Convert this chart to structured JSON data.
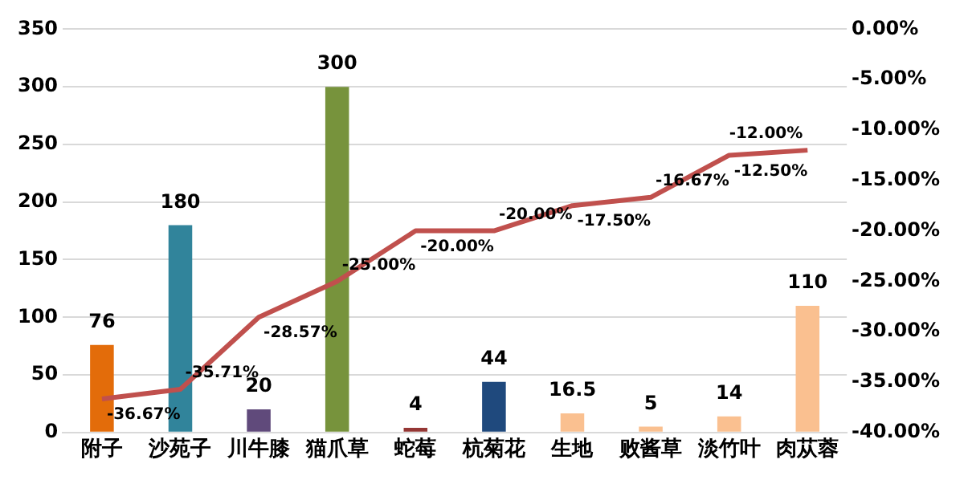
{
  "chart_data": {
    "type": "bar",
    "categories": [
      "附子",
      "沙苑子",
      "川牛膝",
      "猫爪草",
      "蛇莓",
      "杭菊花",
      "生地",
      "败酱草",
      "淡竹叶",
      "肉苁蓉"
    ],
    "series": [
      {
        "colors": [
          "#e36c0a",
          "#31849b",
          "#604a7b",
          "#77933c",
          "#953735",
          "#1f497d",
          "#fac090",
          "#fac090",
          "#fac090",
          "#fac090"
        ],
        "values": [
          76,
          180,
          20,
          300,
          4,
          44,
          16.5,
          5,
          14,
          110
        ],
        "value_labels": [
          "76",
          "180",
          "20",
          "300",
          "4",
          "44",
          "16.5",
          "5",
          "14",
          "110"
        ]
      },
      {
        "type": "line",
        "axis": "y2",
        "color": "#c0504d",
        "values": [
          -36.67,
          -35.71,
          -28.57,
          -25.0,
          -20.0,
          -20.0,
          -17.5,
          -16.67,
          -12.5,
          -12.0
        ],
        "value_labels": [
          "-36.67%",
          "-35.71%",
          "-28.57%",
          "-25.00%",
          "-20.00%",
          "-20.00%",
          "-17.50%",
          "-16.67%",
          "-12.50%",
          "-12.00%"
        ]
      }
    ],
    "ylim": [
      0,
      350
    ],
    "yticks": [
      0,
      50,
      100,
      150,
      200,
      250,
      300,
      350
    ],
    "y2lim": [
      -40,
      0
    ],
    "y2ticks": [
      {
        "value": 0,
        "label": "0.00%"
      },
      {
        "value": -5,
        "label": "-5.00%"
      },
      {
        "value": -10,
        "label": "-10.00%"
      },
      {
        "value": -15,
        "label": "-15.00%"
      },
      {
        "value": -20,
        "label": "-20.00%"
      },
      {
        "value": -25,
        "label": "-25.00%"
      },
      {
        "value": -30,
        "label": "-30.00%"
      },
      {
        "value": -35,
        "label": "-35.00%"
      },
      {
        "value": -40,
        "label": "-40.00%"
      }
    ],
    "grid": "y",
    "legend": false,
    "marker": "none",
    "line_style": "solid"
  }
}
